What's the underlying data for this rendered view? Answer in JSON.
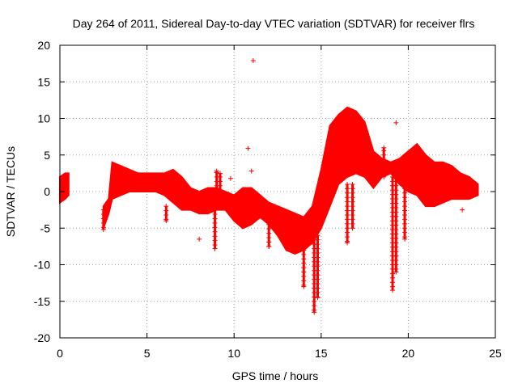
{
  "chart_data": {
    "type": "scatter",
    "title": "Day 264 of 2011, Sidereal Day-to-day VTEC variation (SDTVAR) for receiver flrs",
    "xlabel": "GPS time / hours",
    "ylabel": "SDTVAR / TECUs",
    "xlim": [
      0,
      25
    ],
    "ylim": [
      -20,
      20
    ],
    "x_ticks": [
      0,
      5,
      10,
      15,
      20,
      25
    ],
    "y_ticks": [
      -20,
      -15,
      -10,
      -5,
      0,
      5,
      10,
      15,
      20
    ],
    "grid": true,
    "marker": "+",
    "color": "#ff0000",
    "series": [
      {
        "name": "SDTVAR",
        "band_envelope": {
          "x": [
            0.0,
            0.3,
            0.5,
            2.5,
            2.8,
            3.0,
            3.5,
            4.0,
            4.5,
            5.0,
            5.5,
            6.0,
            6.5,
            7.0,
            7.5,
            8.0,
            8.5,
            9.0,
            9.5,
            10.0,
            10.5,
            11.0,
            11.5,
            12.0,
            12.5,
            13.0,
            13.5,
            14.0,
            14.5,
            15.0,
            15.5,
            16.0,
            16.5,
            17.0,
            17.5,
            18.0,
            18.5,
            19.0,
            19.5,
            20.0,
            20.5,
            21.0,
            21.5,
            22.0,
            22.5,
            23.0,
            23.5,
            24.0
          ],
          "upper": [
            2.0,
            2.5,
            2.5,
            -2.0,
            -1.0,
            4.0,
            3.5,
            3.0,
            2.5,
            2.5,
            2.5,
            2.5,
            3.0,
            2.0,
            0.5,
            0.0,
            0.5,
            0.5,
            0.0,
            -0.5,
            0.5,
            0.5,
            -0.5,
            -1.5,
            -2.0,
            -2.5,
            -3.0,
            -3.5,
            -2.0,
            3.0,
            9.0,
            10.5,
            11.5,
            11.0,
            9.5,
            5.5,
            4.5,
            4.0,
            4.5,
            5.5,
            6.5,
            5.0,
            4.0,
            4.0,
            3.5,
            2.5,
            2.0,
            1.0
          ],
          "lower": [
            -1.5,
            -1.0,
            -0.5,
            -5.0,
            -3.0,
            -1.0,
            -0.5,
            0.0,
            0.0,
            0.0,
            0.0,
            -0.5,
            -1.5,
            -2.5,
            -2.5,
            -3.0,
            -3.0,
            -2.5,
            -2.5,
            -4.0,
            -5.0,
            -4.5,
            -3.5,
            -4.5,
            -6.0,
            -8.0,
            -8.5,
            -8.0,
            -7.0,
            -5.0,
            -2.0,
            1.0,
            2.0,
            2.5,
            2.0,
            0.5,
            2.0,
            2.5,
            1.0,
            0.0,
            -0.5,
            -2.0,
            -2.0,
            -1.5,
            -1.0,
            -1.0,
            -1.0,
            -0.5
          ]
        },
        "spikes": [
          {
            "x": 2.5,
            "from": -2.5,
            "to": -5.2
          },
          {
            "x": 6.1,
            "from": -2.0,
            "to": -4.0
          },
          {
            "x": 8.9,
            "from": -2.5,
            "to": -7.8
          },
          {
            "x": 9.0,
            "from": -1.0,
            "to": 2.8
          },
          {
            "x": 9.2,
            "from": -1.0,
            "to": 2.5
          },
          {
            "x": 12.0,
            "from": -4.5,
            "to": -7.5
          },
          {
            "x": 14.0,
            "from": -8.0,
            "to": -13.0
          },
          {
            "x": 14.6,
            "from": -6.0,
            "to": -16.5
          },
          {
            "x": 14.8,
            "from": -6.0,
            "to": -14.5
          },
          {
            "x": 16.5,
            "from": 1.0,
            "to": -7.0
          },
          {
            "x": 16.8,
            "from": 1.0,
            "to": -5.0
          },
          {
            "x": 18.6,
            "from": 2.0,
            "to": 6.0
          },
          {
            "x": 19.1,
            "from": 2.0,
            "to": -13.5
          },
          {
            "x": 19.3,
            "from": 2.0,
            "to": -11.0
          },
          {
            "x": 19.8,
            "from": 1.0,
            "to": -6.5
          }
        ],
        "outliers": [
          {
            "x": 11.1,
            "y": 17.9
          },
          {
            "x": 10.8,
            "y": 5.9
          },
          {
            "x": 11.0,
            "y": 2.8
          },
          {
            "x": 19.3,
            "y": 9.4
          },
          {
            "x": 8.0,
            "y": -6.5
          },
          {
            "x": 9.8,
            "y": 1.8
          },
          {
            "x": 23.1,
            "y": -2.5
          },
          {
            "x": 13.6,
            "y": -7.5
          }
        ]
      }
    ]
  }
}
